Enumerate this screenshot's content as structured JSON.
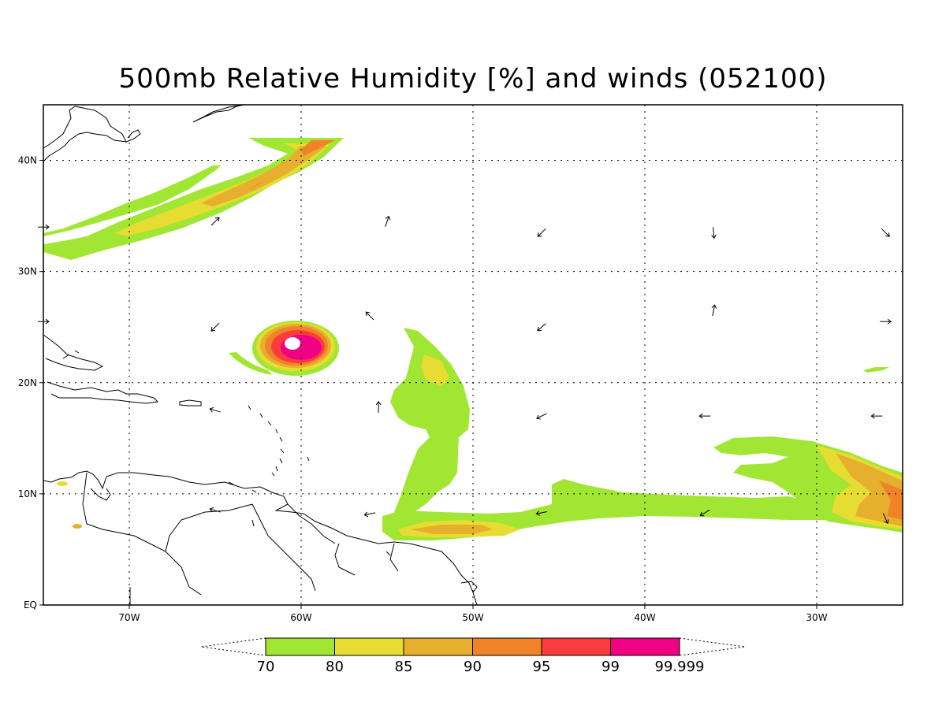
{
  "title": "500mb Relative Humidity [%] and winds (052100)",
  "map": {
    "lon_range": [
      -75,
      -25
    ],
    "lat_range": [
      0,
      45
    ],
    "lon_ticks": [
      {
        "lon": -70,
        "label": "70W"
      },
      {
        "lon": -60,
        "label": "60W"
      },
      {
        "lon": -50,
        "label": "50W"
      },
      {
        "lon": -40,
        "label": "40W"
      },
      {
        "lon": -30,
        "label": "30W"
      }
    ],
    "lat_ticks": [
      {
        "lat": 0,
        "label": "EQ"
      },
      {
        "lat": 10,
        "label": "10N"
      },
      {
        "lat": 20,
        "label": "20N"
      },
      {
        "lat": 30,
        "label": "30N"
      },
      {
        "lat": 40,
        "label": "40N"
      }
    ],
    "grid": true
  },
  "colorbar": {
    "levels": [
      "70",
      "80",
      "85",
      "90",
      "95",
      "99",
      "99.999"
    ],
    "colors": [
      "#a0e632",
      "#e6dc32",
      "#e6af2d",
      "#f08228",
      "#fa3c3c",
      "#f00082"
    ]
  },
  "humidity_features": [
    {
      "id": "northern-band-outer",
      "level": 0
    },
    {
      "id": "northern-band-inner",
      "level": 2
    },
    {
      "id": "tropical-cyclone",
      "level": 5
    },
    {
      "id": "central-tongue",
      "level": 0
    },
    {
      "id": "southern-band",
      "level": 0
    },
    {
      "id": "eastern-band",
      "level": 3
    }
  ],
  "wind_vectors": [
    {
      "lon": -75,
      "lat": 34,
      "u": 1,
      "v": 0
    },
    {
      "lon": -65,
      "lat": 34.5,
      "u": 0.6,
      "v": 0.6
    },
    {
      "lon": -55,
      "lat": 34.5,
      "u": 0.3,
      "v": 0.9
    },
    {
      "lon": -46,
      "lat": 33.5,
      "u": -0.7,
      "v": -0.7
    },
    {
      "lon": -36,
      "lat": 33.5,
      "u": 0.1,
      "v": -1
    },
    {
      "lon": -26,
      "lat": 33.5,
      "u": 0.7,
      "v": -0.7
    },
    {
      "lon": -75,
      "lat": 25.5,
      "u": 1,
      "v": 0
    },
    {
      "lon": -65,
      "lat": 25,
      "u": -0.7,
      "v": -0.7
    },
    {
      "lon": -56,
      "lat": 26,
      "u": -0.7,
      "v": 0.7
    },
    {
      "lon": -46,
      "lat": 25,
      "u": -0.7,
      "v": -0.6
    },
    {
      "lon": -36,
      "lat": 26.5,
      "u": 0.2,
      "v": 1
    },
    {
      "lon": -26,
      "lat": 25.5,
      "u": 1,
      "v": 0
    },
    {
      "lon": -65,
      "lat": 17.5,
      "u": -1,
      "v": 0.3
    },
    {
      "lon": -55.5,
      "lat": 17.8,
      "u": 0,
      "v": 1
    },
    {
      "lon": -46,
      "lat": 17,
      "u": -0.8,
      "v": -0.4
    },
    {
      "lon": -36.5,
      "lat": 17,
      "u": -1,
      "v": 0
    },
    {
      "lon": -26.5,
      "lat": 17,
      "u": -1,
      "v": 0
    },
    {
      "lon": -65,
      "lat": 8.5,
      "u": -1,
      "v": 0.3
    },
    {
      "lon": -56,
      "lat": 8.2,
      "u": -1,
      "v": -0.2
    },
    {
      "lon": -46,
      "lat": 8.3,
      "u": -1,
      "v": -0.2
    },
    {
      "lon": -36.5,
      "lat": 8.3,
      "u": -0.8,
      "v": -0.5
    },
    {
      "lon": -26,
      "lat": 7.8,
      "u": 0.4,
      "v": -0.9
    }
  ]
}
